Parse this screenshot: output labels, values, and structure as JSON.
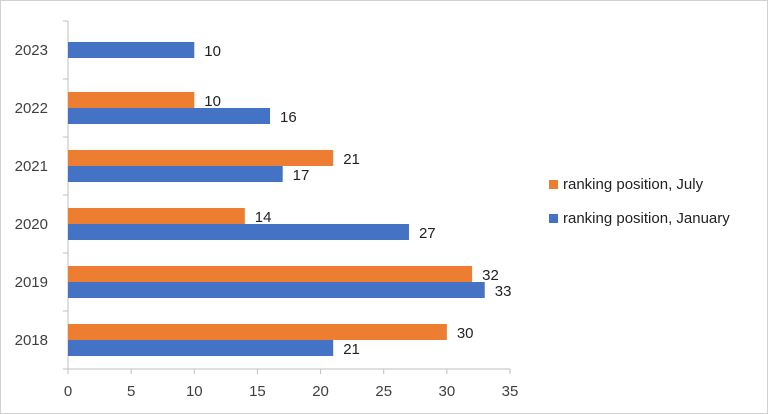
{
  "chart_data": {
    "type": "bar",
    "orientation": "horizontal",
    "categories": [
      "2023",
      "2022",
      "2021",
      "2020",
      "2019",
      "2018"
    ],
    "series": [
      {
        "name": "ranking position, July",
        "color": "#ED7D31",
        "values": [
          null,
          10,
          21,
          14,
          32,
          30
        ]
      },
      {
        "name": "ranking position, January",
        "color": "#4472C4",
        "values": [
          10,
          16,
          17,
          27,
          33,
          21
        ]
      }
    ],
    "xlim": [
      0,
      35
    ],
    "xticks": [
      0,
      5,
      10,
      15,
      20,
      25,
      30,
      35
    ],
    "grid": false,
    "legend_position": "right",
    "title": "",
    "xlabel": "",
    "ylabel": ""
  }
}
